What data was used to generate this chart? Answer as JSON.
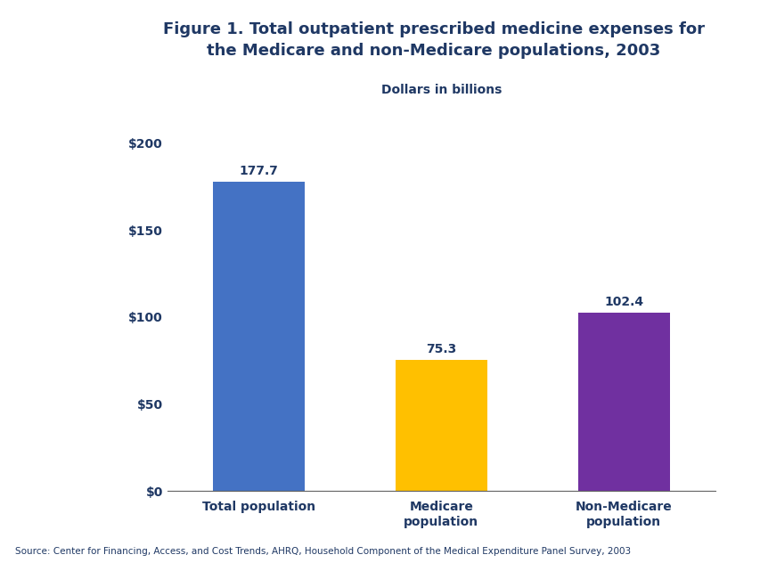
{
  "categories": [
    "Total population",
    "Medicare\npopulation",
    "Non-Medicare\npopulation"
  ],
  "values": [
    177.7,
    75.3,
    102.4
  ],
  "bar_colors": [
    "#4472C4",
    "#FFC000",
    "#7030A0"
  ],
  "value_labels": [
    "177.7",
    "75.3",
    "102.4"
  ],
  "ylabel_text": "Dollars in billions",
  "yticks": [
    0,
    50,
    100,
    150,
    200
  ],
  "ytick_labels": [
    "$0",
    "$50",
    "$100",
    "$150",
    "$200"
  ],
  "ylim": [
    0,
    210
  ],
  "title_line1": "Figure 1. Total outpatient prescribed medicine expenses for",
  "title_line2": "the Medicare and non-Medicare populations, 2003",
  "title_color": "#1F3864",
  "source_text": "Source: Center for Financing, Access, and Cost Trends, AHRQ, Household Component of the Medical Expenditure Panel Survey, 2003",
  "source_color": "#1F3864",
  "label_color": "#1F3864",
  "tick_label_color": "#1F3864",
  "ylabel_color": "#1F3864",
  "background_color": "#FFFFFF",
  "figure_background": "#FFFFFF",
  "header_bar_color": "#1F3864",
  "bar_width": 0.5
}
